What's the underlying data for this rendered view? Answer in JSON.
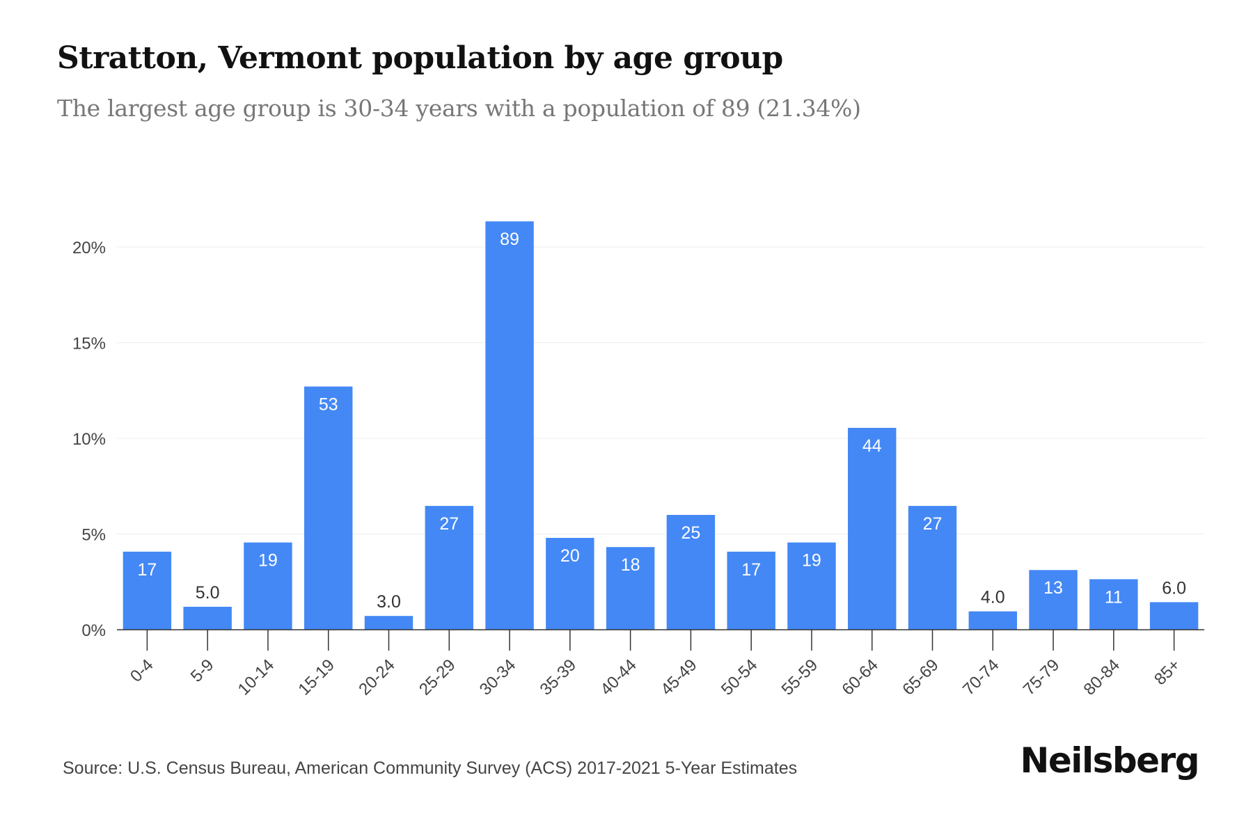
{
  "title": "Stratton, Vermont population by age group",
  "subtitle": "The largest age group is 30-34 years with a population of 89 (21.34%)",
  "source": "Source: U.S. Census Bureau, American Community Survey (ACS) 2017-2021 5-Year Estimates",
  "brand": "Neilsberg",
  "colors": {
    "bar": "#4488f5",
    "label_inside": "#ffffff",
    "label_outside": "#333333",
    "grid": "#eeeeee",
    "axis": "#333333",
    "tick_text": "#444444"
  },
  "chart_data": {
    "type": "bar",
    "categories": [
      "0-4",
      "5-9",
      "10-14",
      "15-19",
      "20-24",
      "25-29",
      "30-34",
      "35-39",
      "40-44",
      "45-49",
      "50-54",
      "55-59",
      "60-64",
      "65-69",
      "70-74",
      "75-79",
      "80-84",
      "85+"
    ],
    "values": [
      4.08,
      1.2,
      4.56,
      12.71,
      0.72,
      6.47,
      21.34,
      4.8,
      4.32,
      6.0,
      4.08,
      4.56,
      10.55,
      6.47,
      0.96,
      3.12,
      2.64,
      1.44
    ],
    "data_labels": [
      "17",
      "5.0",
      "19",
      "53",
      "3.0",
      "27",
      "89",
      "20",
      "18",
      "25",
      "17",
      "19",
      "44",
      "27",
      "4.0",
      "13",
      "11",
      "6.0"
    ],
    "ylim": [
      0,
      22
    ],
    "yticks": [
      0,
      5,
      10,
      15,
      20
    ],
    "ytick_labels": [
      "0%",
      "5%",
      "10%",
      "15%",
      "20%"
    ],
    "grid": true,
    "legend": "none",
    "xlabel": "",
    "ylabel": ""
  }
}
